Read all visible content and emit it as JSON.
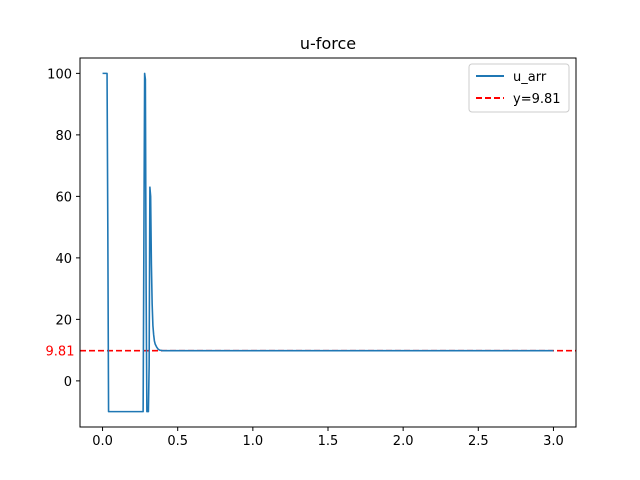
{
  "chart_data": {
    "type": "line",
    "title": "u-force",
    "xlabel": "",
    "ylabel": "",
    "xlim": [
      -0.15,
      3.15
    ],
    "ylim": [
      -15,
      105
    ],
    "xticks": [
      0.0,
      0.5,
      1.0,
      1.5,
      2.0,
      2.5,
      3.0
    ],
    "xtick_labels": [
      "0.0",
      "0.5",
      "1.0",
      "1.5",
      "2.0",
      "2.5",
      "3.0"
    ],
    "yticks": [
      0,
      20,
      40,
      60,
      80,
      100
    ],
    "ytick_labels": [
      "0",
      "20",
      "40",
      "60",
      "80",
      "100"
    ],
    "grid": false,
    "legend_position": "top-right",
    "series": [
      {
        "name": "u_arr",
        "color": "#1f77b4",
        "style": "solid",
        "x": [
          0.0,
          0.03,
          0.035,
          0.04,
          0.27,
          0.275,
          0.28,
          0.285,
          0.29,
          0.295,
          0.3,
          0.305,
          0.31,
          0.315,
          0.32,
          0.325,
          0.33,
          0.335,
          0.34,
          0.345,
          0.35,
          0.36,
          0.37,
          0.38,
          0.4,
          0.45,
          0.5,
          1.0,
          1.5,
          2.0,
          2.5,
          3.0
        ],
        "y": [
          100,
          100,
          50,
          -10,
          -10,
          45,
          100,
          98,
          30,
          -10,
          -10,
          -10,
          5,
          63,
          60,
          38,
          25,
          18,
          15,
          13,
          12,
          11,
          10.3,
          10,
          9.81,
          9.81,
          9.81,
          9.81,
          9.81,
          9.81,
          9.81,
          9.81
        ]
      },
      {
        "name": "y=9.81",
        "color": "#ff0000",
        "style": "dashed",
        "y_value": 9.81,
        "label": "9.81"
      }
    ]
  }
}
